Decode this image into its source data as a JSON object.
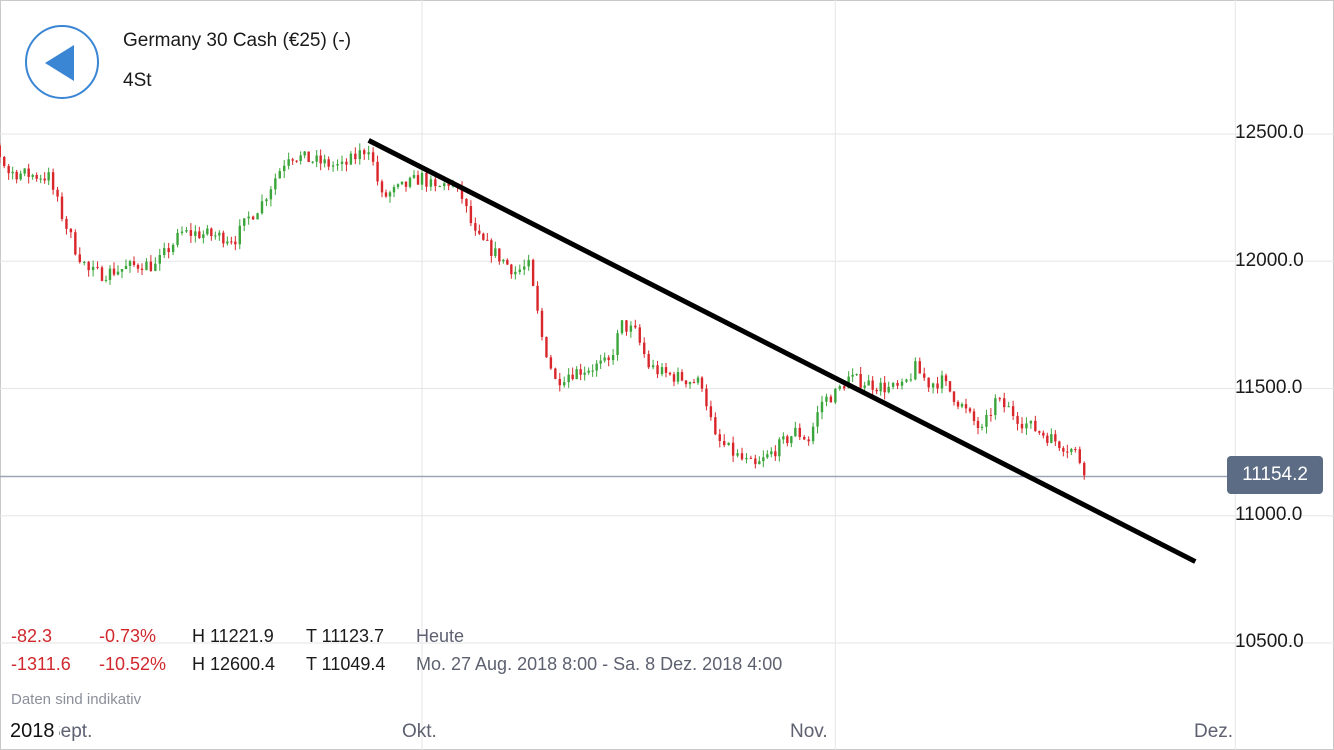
{
  "header": {
    "back_icon": "back-arrow-icon",
    "title": "Germany 30 Cash (€25) (-)",
    "timeframe": "4St"
  },
  "current_price": "11154.2",
  "stats": {
    "today": {
      "change": "-82.3",
      "change_pct": "-0.73%",
      "high": "H 11221.9",
      "low": "T 11123.7",
      "period": "Heute"
    },
    "range": {
      "change": "-1311.6",
      "change_pct": "-10.52%",
      "high": "H 12600.4",
      "low": "T 11049.4",
      "period": "Mo. 27 Aug. 2018 8:00 - Sa. 8 Dez. 2018 4:00"
    }
  },
  "disclaimer": "Daten sind indikativ",
  "colors": {
    "up": "#3aa53a",
    "down": "#d9262b",
    "accent": "#3a86d4",
    "price_badge": "#5b6c84",
    "grid": "#e6e6e6",
    "trendline": "#000000"
  },
  "chart_data": {
    "type": "candlestick",
    "interval": "4h",
    "y_ticks": [
      "12500.0",
      "12000.0",
      "11500.0",
      "11000.0",
      "10500.0"
    ],
    "ylim": [
      10400,
      12700
    ],
    "x_year_label": "2018",
    "x_labels": [
      "Sept.",
      "Okt.",
      "Nov.",
      "Dez."
    ],
    "current_price_line": 11154.2,
    "trendline": {
      "from": [
        "2018-09-27",
        12475
      ],
      "to": [
        "2018-11-28",
        10820
      ]
    },
    "daily_closes": [
      [
        "2018-08-27",
        12530
      ],
      [
        "2018-08-28",
        12560
      ],
      [
        "2018-08-29",
        12540
      ],
      [
        "2018-08-30",
        12450
      ],
      [
        "2018-08-31",
        12350
      ],
      [
        "2018-09-03",
        12330
      ],
      [
        "2018-09-04",
        12180
      ],
      [
        "2018-09-05",
        12050
      ],
      [
        "2018-09-06",
        11960
      ],
      [
        "2018-09-07",
        11950
      ],
      [
        "2018-09-10",
        11990
      ],
      [
        "2018-09-11",
        11980
      ],
      [
        "2018-09-12",
        12050
      ],
      [
        "2018-09-13",
        12110
      ],
      [
        "2018-09-14",
        12110
      ],
      [
        "2018-09-17",
        12090
      ],
      [
        "2018-09-18",
        12170
      ],
      [
        "2018-09-19",
        12230
      ],
      [
        "2018-09-20",
        12330
      ],
      [
        "2018-09-21",
        12420
      ],
      [
        "2018-09-24",
        12380
      ],
      [
        "2018-09-25",
        12370
      ],
      [
        "2018-09-26",
        12410
      ],
      [
        "2018-09-27",
        12450
      ],
      [
        "2018-09-28",
        12250
      ],
      [
        "2018-10-01",
        12330
      ],
      [
        "2018-10-02",
        12280
      ],
      [
        "2018-10-03",
        12310
      ],
      [
        "2018-10-04",
        12250
      ],
      [
        "2018-10-05",
        12100
      ],
      [
        "2018-10-08",
        11960
      ],
      [
        "2018-10-09",
        11980
      ],
      [
        "2018-10-10",
        11700
      ],
      [
        "2018-10-11",
        11530
      ],
      [
        "2018-10-12",
        11560
      ],
      [
        "2018-10-15",
        11600
      ],
      [
        "2018-10-16",
        11750
      ],
      [
        "2018-10-17",
        11720
      ],
      [
        "2018-10-18",
        11590
      ],
      [
        "2018-10-19",
        11560
      ],
      [
        "2018-10-22",
        11520
      ],
      [
        "2018-10-23",
        11300
      ],
      [
        "2018-10-24",
        11260
      ],
      [
        "2018-10-25",
        11220
      ],
      [
        "2018-10-26",
        11190
      ],
      [
        "2018-10-29",
        11330
      ],
      [
        "2018-10-30",
        11300
      ],
      [
        "2018-10-31",
        11450
      ],
      [
        "2018-11-01",
        11480
      ],
      [
        "2018-11-02",
        11540
      ],
      [
        "2018-11-05",
        11500
      ],
      [
        "2018-11-06",
        11500
      ],
      [
        "2018-11-07",
        11580
      ],
      [
        "2018-11-08",
        11520
      ],
      [
        "2018-11-09",
        11530
      ],
      [
        "2018-11-12",
        11330
      ],
      [
        "2018-11-13",
        11450
      ],
      [
        "2018-11-14",
        11420
      ],
      [
        "2018-11-15",
        11370
      ],
      [
        "2018-11-16",
        11340
      ],
      [
        "2018-11-19",
        11250
      ],
      [
        "2018-11-20",
        11154.2
      ]
    ]
  }
}
